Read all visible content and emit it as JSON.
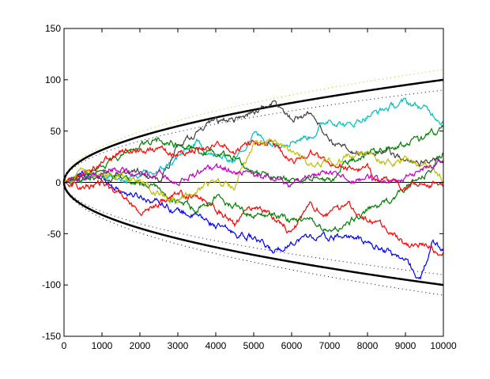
{
  "chart_data": {
    "type": "line",
    "title": "",
    "xlabel": "",
    "ylabel": "",
    "xlim": [
      0,
      10000
    ],
    "ylim": [
      -150,
      150
    ],
    "grid": false,
    "legend": null,
    "x_ticks": [
      "0",
      "1000",
      "2000",
      "3000",
      "4000",
      "5000",
      "6000",
      "7000",
      "8000",
      "9000",
      "10000"
    ],
    "y_ticks": [
      "-150",
      "-100",
      "-50",
      "0",
      "50",
      "100",
      "150"
    ],
    "reference_lines": [
      {
        "name": "zero-line",
        "style": "solid",
        "color": "#000000",
        "width": 1,
        "formula": "y = 0"
      },
      {
        "name": "upper-envelope",
        "style": "solid-thick",
        "color": "#000000",
        "width": 2.5,
        "formula": "y = sqrt(x)",
        "end_value": 100
      },
      {
        "name": "lower-envelope",
        "style": "solid-thick",
        "color": "#000000",
        "width": 2.5,
        "formula": "y = -sqrt(x)",
        "end_value": -100
      },
      {
        "name": "upper-inner-dotted",
        "style": "dotted",
        "color": "#000080",
        "formula": "y = 0.9*sqrt(x)",
        "end_value": 90
      },
      {
        "name": "lower-inner-dotted",
        "style": "dotted",
        "color": "#000080",
        "formula": "y = -0.9*sqrt(x)",
        "end_value": -90
      },
      {
        "name": "upper-outer-dotted",
        "style": "dotted",
        "color": "#bfbf00",
        "formula": "y = 1.1*sqrt(x)",
        "end_value": 110
      },
      {
        "name": "lower-outer-dotted",
        "style": "dotted",
        "color": "#000000",
        "formula": "y = -1.1*sqrt(x)",
        "end_value": -110
      }
    ],
    "series": [
      {
        "name": "walk-blue",
        "color": "#0000ff",
        "x": [
          0,
          500,
          1000,
          1500,
          2000,
          2500,
          3000,
          3500,
          4000,
          4500,
          5000,
          5500,
          6000,
          6500,
          7000,
          7500,
          8000,
          8500,
          9000,
          9400,
          9700,
          10000
        ],
        "y": [
          0,
          8,
          5,
          -8,
          -14,
          -18,
          -28,
          -33,
          -42,
          -50,
          -54,
          -68,
          -58,
          -52,
          -55,
          -52,
          -60,
          -66,
          -76,
          -95,
          -60,
          -65
        ]
      },
      {
        "name": "walk-red",
        "color": "#ff0000",
        "x": [
          0,
          500,
          1000,
          1500,
          2000,
          2500,
          3000,
          3500,
          4000,
          4500,
          5000,
          5500,
          6000,
          6500,
          7000,
          7500,
          8000,
          8500,
          9000,
          9500,
          10000
        ],
        "y": [
          0,
          -5,
          -2,
          -10,
          -30,
          -20,
          -12,
          -14,
          -24,
          -42,
          -22,
          -32,
          -48,
          -22,
          -32,
          -20,
          -38,
          -44,
          -62,
          -60,
          -72
        ]
      },
      {
        "name": "walk-darkgray",
        "color": "#404040",
        "x": [
          0,
          500,
          1000,
          1500,
          2000,
          2500,
          3000,
          3500,
          4000,
          4500,
          5000,
          5500,
          6000,
          6500,
          7000,
          7500,
          8000,
          8500,
          9000,
          9500,
          10000
        ],
        "y": [
          0,
          5,
          3,
          8,
          10,
          -1,
          35,
          48,
          58,
          62,
          68,
          78,
          62,
          68,
          42,
          30,
          28,
          32,
          18,
          22,
          22
        ]
      },
      {
        "name": "walk-cyan",
        "color": "#00bfbf",
        "x": [
          0,
          500,
          1000,
          1500,
          2000,
          2500,
          3000,
          3500,
          4000,
          4500,
          5000,
          5500,
          6000,
          6500,
          7000,
          7500,
          8000,
          8500,
          9000,
          9500,
          10000
        ],
        "y": [
          0,
          5,
          8,
          2,
          6,
          10,
          24,
          38,
          25,
          22,
          48,
          38,
          42,
          45,
          62,
          55,
          65,
          72,
          78,
          72,
          60
        ]
      },
      {
        "name": "walk-green",
        "color": "#008000",
        "x": [
          0,
          500,
          1000,
          1500,
          2000,
          2500,
          3000,
          3500,
          4000,
          4500,
          5000,
          5500,
          6000,
          6500,
          7000,
          7500,
          8000,
          8500,
          9000,
          9500,
          10000
        ],
        "y": [
          0,
          5,
          18,
          25,
          35,
          40,
          38,
          32,
          28,
          26,
          10,
          5,
          2,
          4,
          0,
          20,
          28,
          35,
          38,
          42,
          55
        ]
      },
      {
        "name": "walk-darkgreen",
        "color": "#008000",
        "x": [
          0,
          500,
          1000,
          1500,
          2000,
          2500,
          3000,
          3500,
          4000,
          4500,
          5000,
          5500,
          6000,
          6500,
          7000,
          7500,
          8000,
          8500,
          9000,
          9500,
          10000
        ],
        "y": [
          0,
          3,
          8,
          5,
          0,
          -8,
          -20,
          -25,
          -15,
          -22,
          -32,
          -30,
          -38,
          -36,
          -48,
          -40,
          -28,
          -20,
          -5,
          5,
          30
        ]
      },
      {
        "name": "walk-red2",
        "color": "#ff0000",
        "x": [
          0,
          500,
          1000,
          1500,
          2000,
          2500,
          3000,
          3500,
          4000,
          4500,
          5000,
          5500,
          6000,
          6500,
          7000,
          7500,
          8000,
          8500,
          9000,
          9500,
          10000
        ],
        "y": [
          0,
          10,
          18,
          30,
          34,
          30,
          28,
          32,
          35,
          30,
          38,
          35,
          20,
          30,
          18,
          14,
          12,
          0,
          -5,
          0,
          -2
        ]
      },
      {
        "name": "walk-yellow",
        "color": "#bfbf00",
        "x": [
          0,
          500,
          1000,
          1500,
          2000,
          2500,
          3000,
          3500,
          4000,
          4500,
          5000,
          5500,
          6000,
          6500,
          7000,
          7500,
          8000,
          8500,
          9000,
          9500,
          10000
        ],
        "y": [
          0,
          12,
          5,
          8,
          2,
          -10,
          -18,
          -8,
          0,
          -5,
          38,
          40,
          30,
          15,
          20,
          25,
          30,
          18,
          22,
          15,
          2
        ]
      },
      {
        "name": "walk-magenta",
        "color": "#bf00bf",
        "x": [
          0,
          500,
          1000,
          1500,
          2000,
          2500,
          3000,
          3500,
          4000,
          4500,
          5000,
          5500,
          6000,
          6500,
          7000,
          7500,
          8000,
          8500,
          9000,
          9500,
          10000
        ],
        "y": [
          0,
          5,
          10,
          15,
          5,
          8,
          0,
          10,
          12,
          14,
          5,
          6,
          -3,
          5,
          10,
          0,
          5,
          0,
          5,
          15,
          20
        ]
      }
    ]
  },
  "axes": {
    "x_ticks": [
      "0",
      "1000",
      "2000",
      "3000",
      "4000",
      "5000",
      "6000",
      "7000",
      "8000",
      "9000",
      "10000"
    ],
    "y_ticks": [
      "150",
      "100",
      "50",
      "0",
      "-50",
      "-100",
      "-150"
    ]
  }
}
